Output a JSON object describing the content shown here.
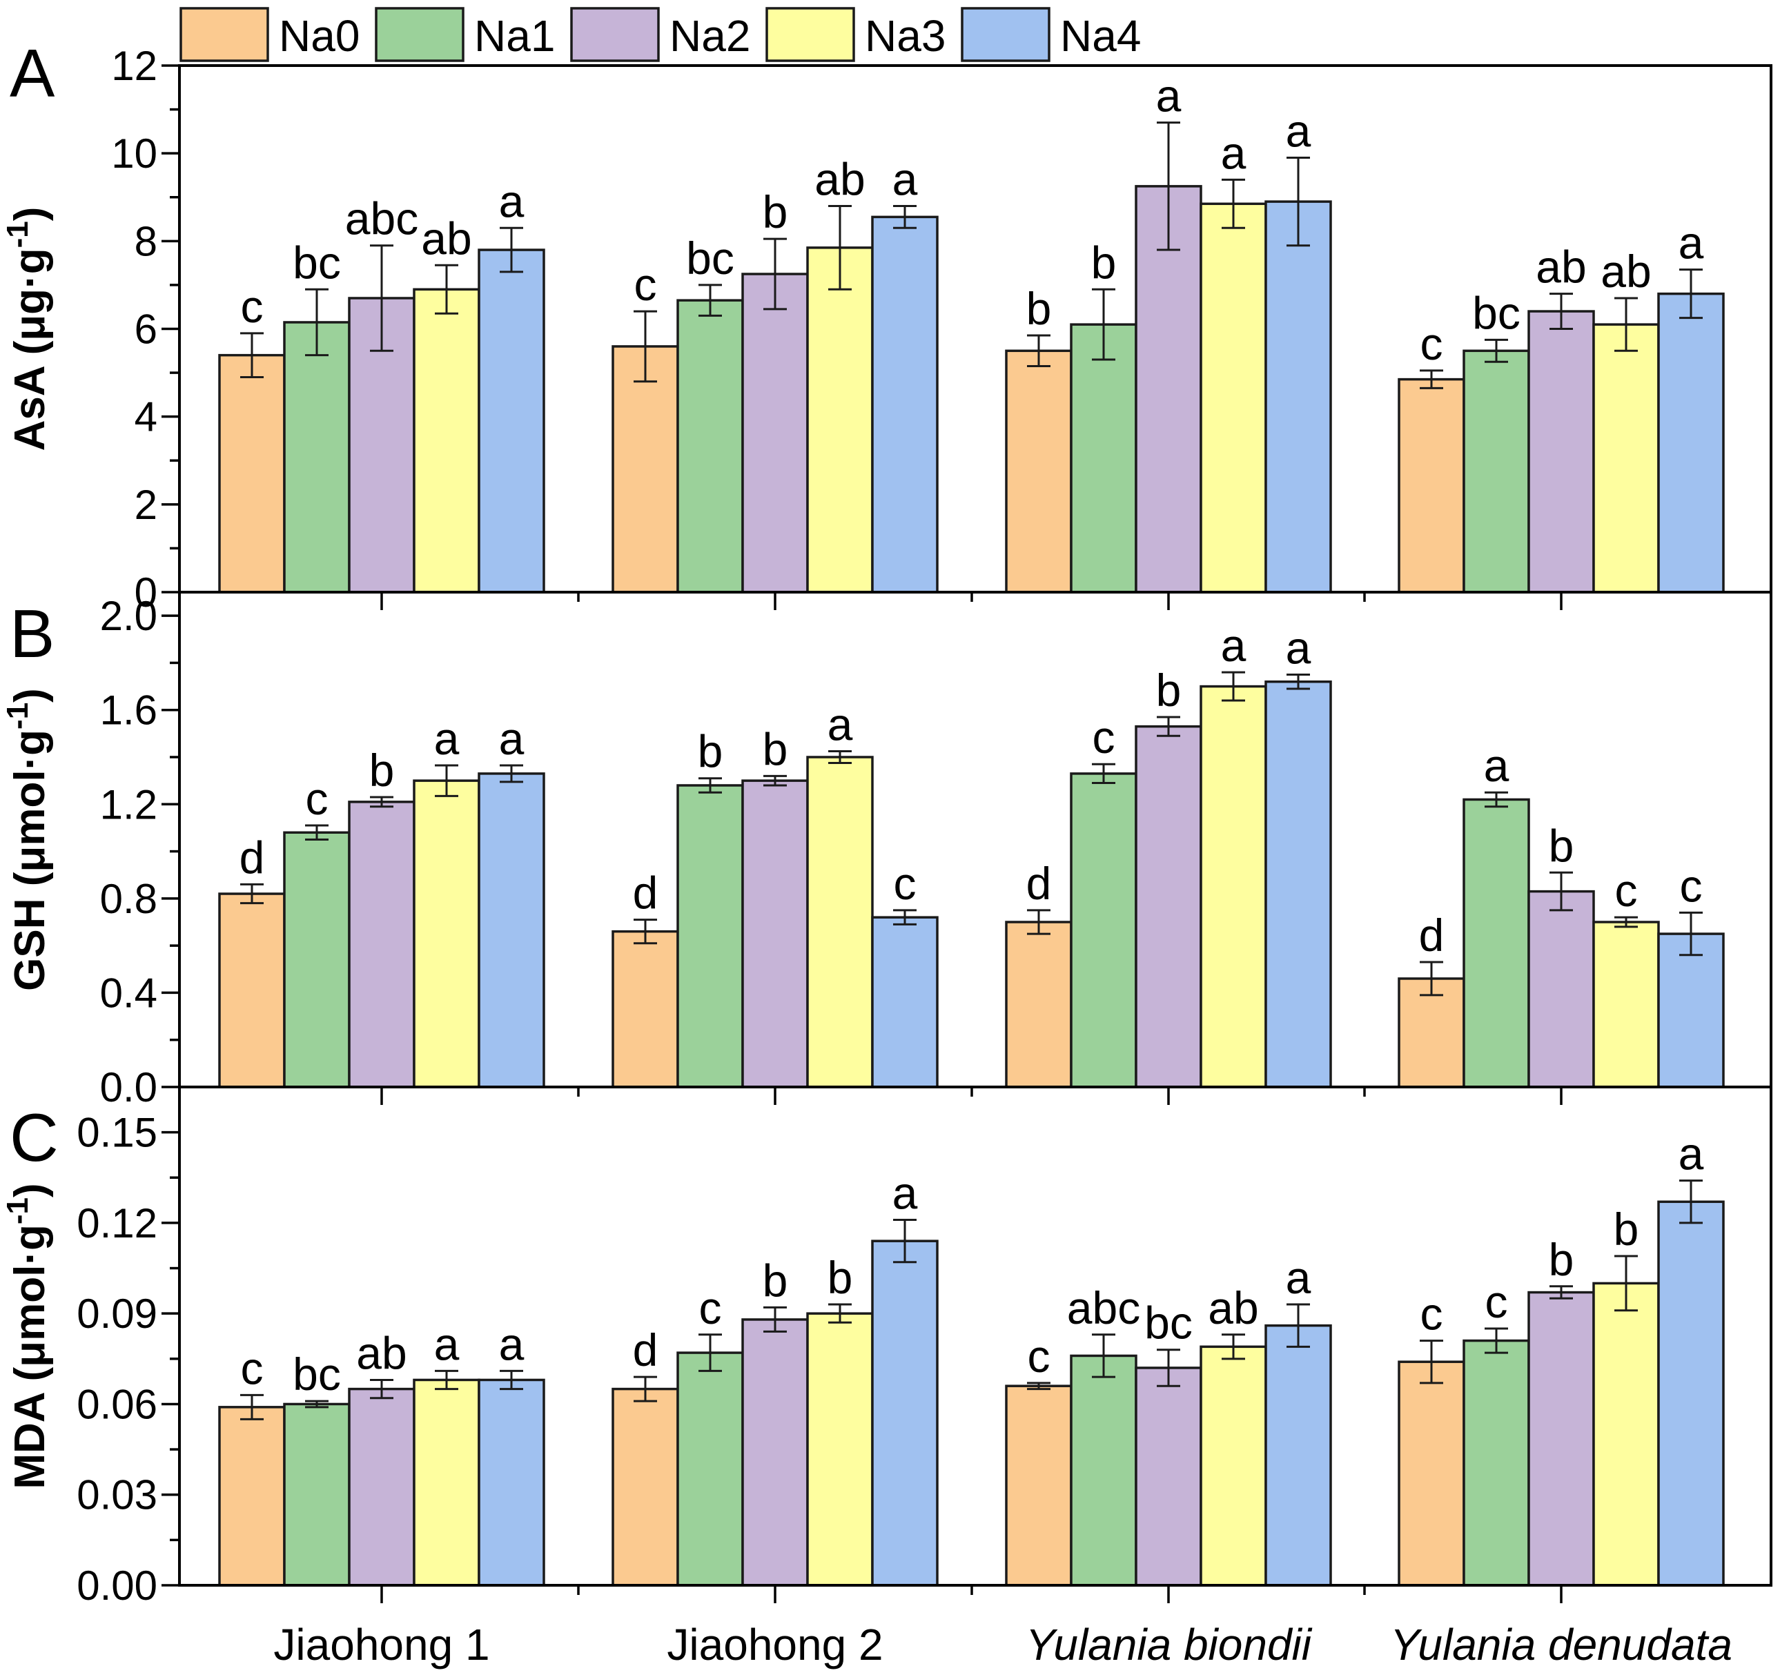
{
  "legend": {
    "items": [
      {
        "label": "Na0",
        "color": "#FBCA90"
      },
      {
        "label": "Na1",
        "color": "#9BD19A"
      },
      {
        "label": "Na2",
        "color": "#C6B4D7"
      },
      {
        "label": "Na3",
        "color": "#FEFE9F"
      },
      {
        "label": "Na4",
        "color": "#A0C1F0"
      }
    ]
  },
  "categories": [
    {
      "label": "Jiaohong 1",
      "italic": false
    },
    {
      "label": "Jiaohong 2",
      "italic": false
    },
    {
      "label": "Yulania biondii",
      "italic": true
    },
    {
      "label": "Yulania denudata",
      "italic": true
    }
  ],
  "chart_data": [
    {
      "type": "bar",
      "panel_label": "A",
      "ylabel_base": "AsA (μg·g",
      "ylabel_sup": "-1",
      "ylabel_close": ")",
      "ylim": [
        0,
        12
      ],
      "ytick_values": [
        0,
        2,
        4,
        6,
        8,
        10,
        12
      ],
      "ytick_labels": [
        "0",
        "2",
        "4",
        "6",
        "8",
        "10",
        "12"
      ],
      "ytick_minor_step": 1,
      "categories": [
        "Jiaohong 1",
        "Jiaohong 2",
        "Yulania biondii",
        "Yulania denudata"
      ],
      "series": [
        {
          "name": "Na0",
          "values": [
            5.4,
            5.6,
            5.5,
            4.85
          ],
          "errors": [
            0.5,
            0.8,
            0.35,
            0.2
          ],
          "letters": [
            "c",
            "c",
            "b",
            "c"
          ]
        },
        {
          "name": "Na1",
          "values": [
            6.15,
            6.65,
            6.1,
            5.5
          ],
          "errors": [
            0.75,
            0.35,
            0.8,
            0.25
          ],
          "letters": [
            "bc",
            "bc",
            "b",
            "bc"
          ]
        },
        {
          "name": "Na2",
          "values": [
            6.7,
            7.25,
            9.25,
            6.4
          ],
          "errors": [
            1.2,
            0.8,
            1.45,
            0.4
          ],
          "letters": [
            "abc",
            "b",
            "a",
            "ab"
          ]
        },
        {
          "name": "Na3",
          "values": [
            6.9,
            7.85,
            8.85,
            6.1
          ],
          "errors": [
            0.55,
            0.95,
            0.55,
            0.6
          ],
          "letters": [
            "ab",
            "ab",
            "a",
            "ab"
          ]
        },
        {
          "name": "Na4",
          "values": [
            7.8,
            8.55,
            8.9,
            6.8
          ],
          "errors": [
            0.5,
            0.25,
            1.0,
            0.55
          ],
          "letters": [
            "a",
            "a",
            "a",
            "a"
          ]
        }
      ]
    },
    {
      "type": "bar",
      "panel_label": "B",
      "ylabel_base": "GSH (μmol·g",
      "ylabel_sup": "-1",
      "ylabel_close": ")",
      "ylim": [
        0,
        2.1
      ],
      "ytick_values": [
        0,
        0.4,
        0.8,
        1.2,
        1.6,
        2.0
      ],
      "ytick_labels": [
        "0.0",
        "0.4",
        "0.8",
        "1.2",
        "1.6",
        "2.0"
      ],
      "ytick_minor_step": 0.2,
      "categories": [
        "Jiaohong 1",
        "Jiaohong 2",
        "Yulania biondii",
        "Yulania denudata"
      ],
      "series": [
        {
          "name": "Na0",
          "values": [
            0.82,
            0.66,
            0.7,
            0.46
          ],
          "errors": [
            0.04,
            0.05,
            0.05,
            0.07
          ],
          "letters": [
            "d",
            "d",
            "d",
            "d"
          ]
        },
        {
          "name": "Na1",
          "values": [
            1.08,
            1.28,
            1.33,
            1.22
          ],
          "errors": [
            0.03,
            0.03,
            0.04,
            0.03
          ],
          "letters": [
            "c",
            "b",
            "c",
            "a"
          ]
        },
        {
          "name": "Na2",
          "values": [
            1.21,
            1.3,
            1.53,
            0.83
          ],
          "errors": [
            0.02,
            0.02,
            0.04,
            0.08
          ],
          "letters": [
            "b",
            "b",
            "b",
            "b"
          ]
        },
        {
          "name": "Na3",
          "values": [
            1.3,
            1.4,
            1.7,
            0.7
          ],
          "errors": [
            0.065,
            0.025,
            0.06,
            0.02
          ],
          "letters": [
            "a",
            "a",
            "a",
            "c"
          ]
        },
        {
          "name": "Na4",
          "values": [
            1.33,
            0.72,
            1.72,
            0.65
          ],
          "errors": [
            0.035,
            0.03,
            0.03,
            0.09
          ],
          "letters": [
            "a",
            "c",
            "a",
            "c"
          ]
        }
      ]
    },
    {
      "type": "bar",
      "panel_label": "C",
      "ylabel_base": "MDA (μmol·g",
      "ylabel_sup": "-1",
      "ylabel_close": ")",
      "ylim": [
        0,
        0.165
      ],
      "ytick_values": [
        0,
        0.03,
        0.06,
        0.09,
        0.12,
        0.15
      ],
      "ytick_labels": [
        "0.00",
        "0.03",
        "0.06",
        "0.09",
        "0.12",
        "0.15"
      ],
      "ytick_minor_step": 0.015,
      "categories": [
        "Jiaohong 1",
        "Jiaohong 2",
        "Yulania biondii",
        "Yulania denudata"
      ],
      "series": [
        {
          "name": "Na0",
          "values": [
            0.059,
            0.065,
            0.066,
            0.074
          ],
          "errors": [
            0.004,
            0.004,
            0.001,
            0.007
          ],
          "letters": [
            "c",
            "d",
            "c",
            "c"
          ]
        },
        {
          "name": "Na1",
          "values": [
            0.06,
            0.077,
            0.076,
            0.081
          ],
          "errors": [
            0.001,
            0.006,
            0.007,
            0.004
          ],
          "letters": [
            "bc",
            "c",
            "abc",
            "c"
          ]
        },
        {
          "name": "Na2",
          "values": [
            0.065,
            0.088,
            0.072,
            0.097
          ],
          "errors": [
            0.003,
            0.004,
            0.006,
            0.002
          ],
          "letters": [
            "ab",
            "b",
            "bc",
            "b"
          ]
        },
        {
          "name": "Na3",
          "values": [
            0.068,
            0.09,
            0.079,
            0.1
          ],
          "errors": [
            0.003,
            0.003,
            0.004,
            0.009
          ],
          "letters": [
            "a",
            "b",
            "ab",
            "b"
          ]
        },
        {
          "name": "Na4",
          "values": [
            0.068,
            0.114,
            0.086,
            0.127
          ],
          "errors": [
            0.003,
            0.007,
            0.007,
            0.007
          ],
          "letters": [
            "a",
            "a",
            "a",
            "a"
          ]
        }
      ]
    }
  ]
}
